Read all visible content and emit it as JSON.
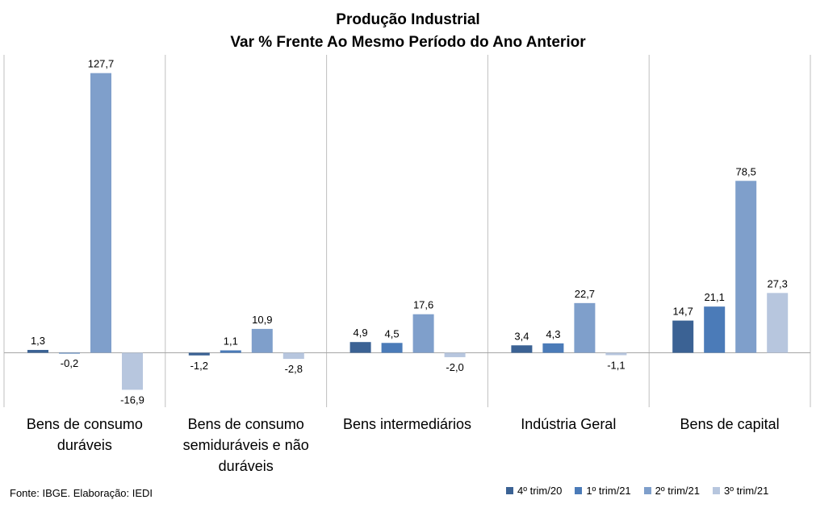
{
  "chart_data": {
    "type": "bar",
    "title": "Produção Industrial",
    "subtitle": "Var % Frente Ao Mesmo Período do Ano Anterior",
    "categories": [
      "Bens de consumo duráveis",
      "Bens de consumo semiduráveis e não duráveis",
      "Bens intermediários",
      "Indústria Geral",
      "Bens de capital"
    ],
    "category_label_lines": [
      [
        "Bens de consumo",
        "duráveis"
      ],
      [
        "Bens de consumo",
        "semiduráveis e não",
        "duráveis"
      ],
      [
        "Bens intermediários"
      ],
      [
        "Indústria Geral"
      ],
      [
        "Bens de capital"
      ]
    ],
    "series": [
      {
        "name": "4º trim/20",
        "color": "#3B6294",
        "values": [
          1.3,
          -1.2,
          4.9,
          3.4,
          14.7
        ],
        "labels": [
          "1,3",
          "-1,2",
          "4,9",
          "3,4",
          "14,7"
        ]
      },
      {
        "name": "1º trim/21",
        "color": "#4B7BB8",
        "values": [
          -0.2,
          1.1,
          4.5,
          4.3,
          21.1
        ],
        "labels": [
          "-0,2",
          "1,1",
          "4,5",
          "4,3",
          "21,1"
        ]
      },
      {
        "name": "2º trim/21",
        "color": "#7F9FCB",
        "values": [
          127.7,
          10.9,
          17.6,
          22.7,
          78.5
        ],
        "labels": [
          "127,7",
          "10,9",
          "17,6",
          "22,7",
          "78,5"
        ]
      },
      {
        "name": "3º trim/21",
        "color": "#B7C6DE",
        "values": [
          -16.9,
          -2.8,
          -2.0,
          -1.1,
          27.3
        ],
        "labels": [
          "-16,9",
          "-2,8",
          "-2,0",
          "-1,1",
          "27,3"
        ]
      }
    ],
    "grid": false,
    "legend_position": "bottom-right"
  },
  "footer": "Fonte: IBGE. Elaboração: IEDI"
}
